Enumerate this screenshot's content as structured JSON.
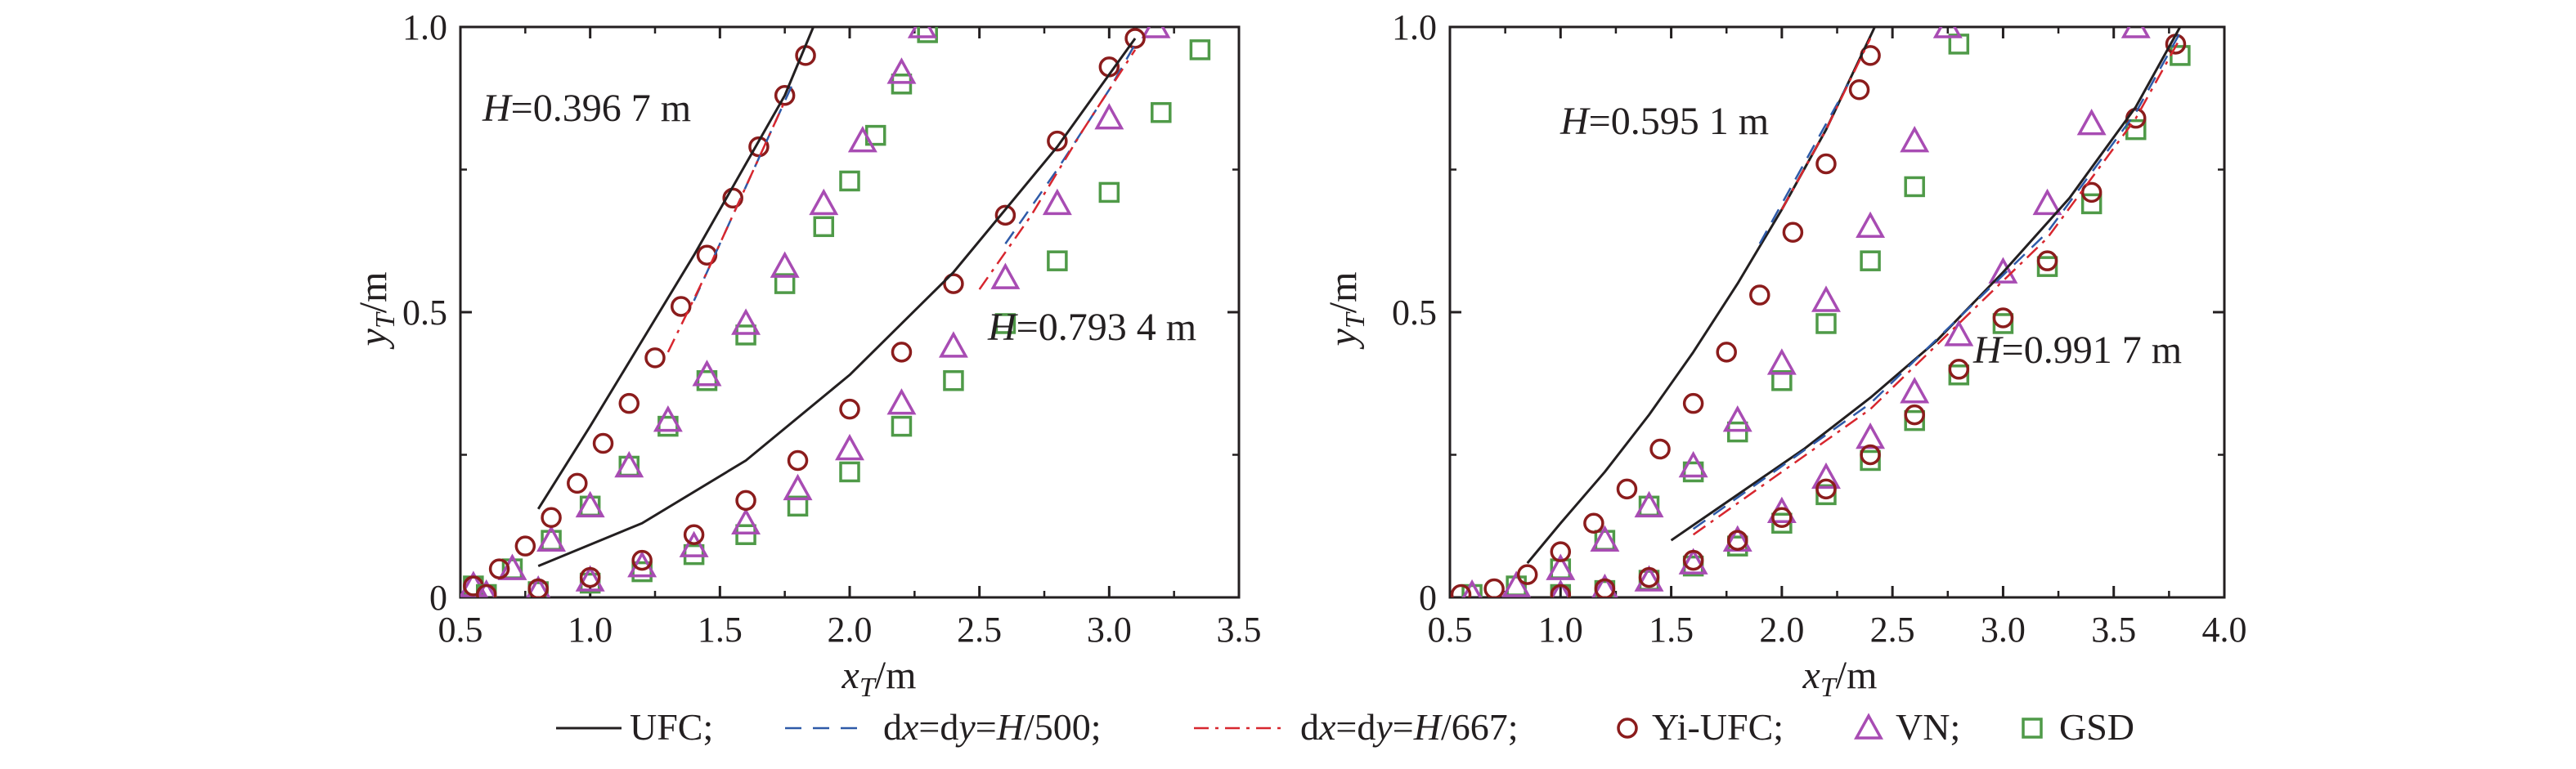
{
  "colors": {
    "ufc": "#231f20",
    "dx500": "#2e5aa8",
    "dx667": "#d7262e",
    "yi_ufc": "#8b1c1c",
    "vn": "#a84cb3",
    "gsd": "#4f9a48",
    "axis": "#231f20"
  },
  "legend": {
    "items": [
      {
        "key": "ufc",
        "marker": "solid-line",
        "text": "UFC;"
      },
      {
        "key": "dx500",
        "marker": "dashed-line",
        "text": "dx=dy=H/500;"
      },
      {
        "key": "dx667",
        "marker": "dashdot-line",
        "text": "dx=dy=H/667;"
      },
      {
        "key": "yi_ufc",
        "marker": "circle",
        "text": "Yi-UFC;"
      },
      {
        "key": "vn",
        "marker": "triangle",
        "text": "VN;"
      },
      {
        "key": "gsd",
        "marker": "square",
        "text": "GSD"
      }
    ]
  },
  "chart_data": [
    {
      "type": "line",
      "xlabel": "x_T/m",
      "ylabel": "y_T/m",
      "xlim": [
        0.5,
        3.5
      ],
      "ylim": [
        0,
        1.0
      ],
      "xticks": [
        "0.5",
        "1.0",
        "1.5",
        "2.0",
        "2.5",
        "3.0",
        "3.5"
      ],
      "yticks": [
        "0",
        "0.5",
        "1.0"
      ],
      "annotations": [
        "H=0.396 7 m",
        "H=0.793 4 m"
      ],
      "groups": [
        {
          "case": "H=0.396 7 m",
          "ufc": {
            "x": [
              0.8,
              1.0,
              1.2,
              1.4,
              1.6,
              1.75,
              1.86
            ],
            "y": [
              0.155,
              0.3,
              0.45,
              0.6,
              0.76,
              0.88,
              1.0
            ]
          },
          "dx500": {
            "x": [
              1.4,
              1.5,
              1.6,
              1.7,
              1.78
            ],
            "y": [
              0.52,
              0.62,
              0.72,
              0.82,
              0.9
            ]
          },
          "dx667": {
            "x": [
              1.3,
              1.45,
              1.6,
              1.75
            ],
            "y": [
              0.43,
              0.57,
              0.72,
              0.87
            ]
          },
          "yi_ufc": {
            "x": [
              0.55,
              0.65,
              0.75,
              0.85,
              0.95,
              1.05,
              1.15,
              1.25,
              1.35,
              1.45,
              1.55,
              1.65,
              1.75,
              1.83
            ],
            "y": [
              0.02,
              0.05,
              0.09,
              0.14,
              0.2,
              0.27,
              0.34,
              0.42,
              0.51,
              0.6,
              0.7,
              0.79,
              0.88,
              0.95
            ]
          },
          "vn": {
            "x": [
              0.55,
              0.7,
              0.85,
              1.0,
              1.15,
              1.3,
              1.45,
              1.6,
              1.75,
              1.9,
              2.05,
              2.2,
              2.28
            ],
            "y": [
              0.02,
              0.05,
              0.1,
              0.16,
              0.23,
              0.31,
              0.39,
              0.48,
              0.58,
              0.69,
              0.8,
              0.92,
              1.0
            ]
          },
          "gsd": {
            "x": [
              0.55,
              0.7,
              0.85,
              1.0,
              1.15,
              1.3,
              1.45,
              1.6,
              1.75,
              1.9,
              2.0,
              2.1,
              2.2,
              2.3
            ],
            "y": [
              0.02,
              0.05,
              0.1,
              0.16,
              0.23,
              0.3,
              0.38,
              0.46,
              0.55,
              0.65,
              0.73,
              0.81,
              0.9,
              0.99
            ]
          }
        },
        {
          "case": "H=0.793 4 m",
          "ufc": {
            "x": [
              0.8,
              1.2,
              1.6,
              2.0,
              2.4,
              2.8,
              3.1
            ],
            "y": [
              0.055,
              0.13,
              0.24,
              0.39,
              0.57,
              0.79,
              0.98
            ]
          },
          "dx500": {
            "x": [
              2.6,
              2.8,
              3.0,
              3.1
            ],
            "y": [
              0.62,
              0.75,
              0.89,
              0.97
            ]
          },
          "dx667": {
            "x": [
              2.5,
              2.7,
              2.9,
              3.1
            ],
            "y": [
              0.54,
              0.67,
              0.82,
              0.96
            ]
          },
          "yi_ufc": {
            "x": [
              0.6,
              0.8,
              1.0,
              1.2,
              1.4,
              1.6,
              1.8,
              2.0,
              2.2,
              2.4,
              2.6,
              2.8,
              3.0,
              3.1
            ],
            "y": [
              0.005,
              0.015,
              0.035,
              0.065,
              0.11,
              0.17,
              0.24,
              0.33,
              0.43,
              0.55,
              0.67,
              0.8,
              0.93,
              0.98
            ]
          },
          "vn": {
            "x": [
              0.6,
              0.8,
              1.0,
              1.2,
              1.4,
              1.6,
              1.8,
              2.0,
              2.2,
              2.4,
              2.6,
              2.8,
              3.0,
              3.18
            ],
            "y": [
              0.005,
              0.012,
              0.03,
              0.055,
              0.09,
              0.13,
              0.19,
              0.26,
              0.34,
              0.44,
              0.56,
              0.69,
              0.84,
              1.0
            ]
          },
          "gsd": {
            "x": [
              0.6,
              0.8,
              1.0,
              1.2,
              1.4,
              1.6,
              1.8,
              2.0,
              2.2,
              2.4,
              2.6,
              2.8,
              3.0,
              3.2,
              3.35
            ],
            "y": [
              0.005,
              0.01,
              0.025,
              0.045,
              0.075,
              0.11,
              0.16,
              0.22,
              0.3,
              0.38,
              0.48,
              0.59,
              0.71,
              0.85,
              0.96
            ]
          }
        }
      ]
    },
    {
      "type": "line",
      "xlabel": "x_T/m",
      "ylabel": "y_T/m",
      "xlim": [
        0.5,
        4.0
      ],
      "ylim": [
        0,
        1.0
      ],
      "xticks": [
        "0.5",
        "1.0",
        "1.5",
        "2.0",
        "2.5",
        "3.0",
        "3.5",
        "4.0"
      ],
      "yticks": [
        "0",
        "0.5",
        "1.0"
      ],
      "annotations": [
        "H=0.595 1 m",
        "H=0.991 7 m"
      ],
      "groups": [
        {
          "case": "H=0.595 1 m",
          "ufc": {
            "x": [
              0.85,
              1.0,
              1.2,
              1.4,
              1.6,
              1.8,
              2.0,
              2.2,
              2.42
            ],
            "y": [
              0.06,
              0.13,
              0.22,
              0.32,
              0.43,
              0.55,
              0.68,
              0.82,
              1.0
            ]
          },
          "dx500": {
            "x": [
              1.9,
              2.1,
              2.3
            ],
            "y": [
              0.62,
              0.76,
              0.9
            ]
          },
          "dx667": {
            "x": [
              2.0,
              2.2,
              2.4
            ],
            "y": [
              0.68,
              0.82,
              0.98
            ]
          },
          "yi_ufc": {
            "x": [
              0.55,
              0.7,
              0.85,
              1.0,
              1.15,
              1.3,
              1.45,
              1.6,
              1.75,
              1.9,
              2.05,
              2.2,
              2.35,
              2.4
            ],
            "y": [
              0.005,
              0.015,
              0.04,
              0.08,
              0.13,
              0.19,
              0.26,
              0.34,
              0.43,
              0.53,
              0.64,
              0.76,
              0.89,
              0.95
            ]
          },
          "vn": {
            "x": [
              0.6,
              0.8,
              1.0,
              1.2,
              1.4,
              1.6,
              1.8,
              2.0,
              2.2,
              2.4,
              2.6,
              2.75
            ],
            "y": [
              0.005,
              0.02,
              0.05,
              0.1,
              0.16,
              0.23,
              0.31,
              0.41,
              0.52,
              0.65,
              0.8,
              1.0
            ]
          },
          "gsd": {
            "x": [
              0.6,
              0.8,
              1.0,
              1.2,
              1.4,
              1.6,
              1.8,
              2.0,
              2.2,
              2.4,
              2.6,
              2.8
            ],
            "y": [
              0.005,
              0.02,
              0.05,
              0.1,
              0.16,
              0.22,
              0.29,
              0.38,
              0.48,
              0.59,
              0.72,
              0.97
            ]
          }
        },
        {
          "case": "H=0.991 7 m",
          "ufc": {
            "x": [
              1.5,
              1.8,
              2.1,
              2.4,
              2.7,
              3.0,
              3.3,
              3.6,
              3.8
            ],
            "y": [
              0.1,
              0.18,
              0.26,
              0.35,
              0.45,
              0.57,
              0.7,
              0.86,
              1.0
            ]
          },
          "dx500": {
            "x": [
              1.6,
              2.0,
              2.4,
              2.8,
              3.2,
              3.6,
              3.8
            ],
            "y": [
              0.12,
              0.23,
              0.34,
              0.49,
              0.64,
              0.85,
              0.99
            ]
          },
          "dx667": {
            "x": [
              1.6,
              2.0,
              2.4,
              2.8,
              3.2,
              3.6,
              3.8
            ],
            "y": [
              0.11,
              0.22,
              0.33,
              0.48,
              0.63,
              0.84,
              0.98
            ]
          },
          "yi_ufc": {
            "x": [
              1.0,
              1.2,
              1.4,
              1.6,
              1.8,
              2.0,
              2.2,
              2.4,
              2.6,
              2.8,
              3.0,
              3.2,
              3.4,
              3.6,
              3.78
            ],
            "y": [
              0.005,
              0.015,
              0.035,
              0.065,
              0.1,
              0.14,
              0.19,
              0.25,
              0.32,
              0.4,
              0.49,
              0.59,
              0.71,
              0.84,
              0.97
            ]
          },
          "vn": {
            "x": [
              1.0,
              1.2,
              1.4,
              1.6,
              1.8,
              2.0,
              2.2,
              2.4,
              2.6,
              2.8,
              3.0,
              3.2,
              3.4,
              3.6
            ],
            "y": [
              0.005,
              0.015,
              0.03,
              0.06,
              0.1,
              0.15,
              0.21,
              0.28,
              0.36,
              0.46,
              0.57,
              0.69,
              0.83,
              1.0
            ]
          },
          "gsd": {
            "x": [
              1.0,
              1.2,
              1.4,
              1.6,
              1.8,
              2.0,
              2.2,
              2.4,
              2.6,
              2.8,
              3.0,
              3.2,
              3.4,
              3.6,
              3.8
            ],
            "y": [
              0.005,
              0.012,
              0.03,
              0.055,
              0.09,
              0.13,
              0.18,
              0.24,
              0.31,
              0.39,
              0.48,
              0.58,
              0.69,
              0.82,
              0.95
            ]
          }
        }
      ]
    }
  ]
}
